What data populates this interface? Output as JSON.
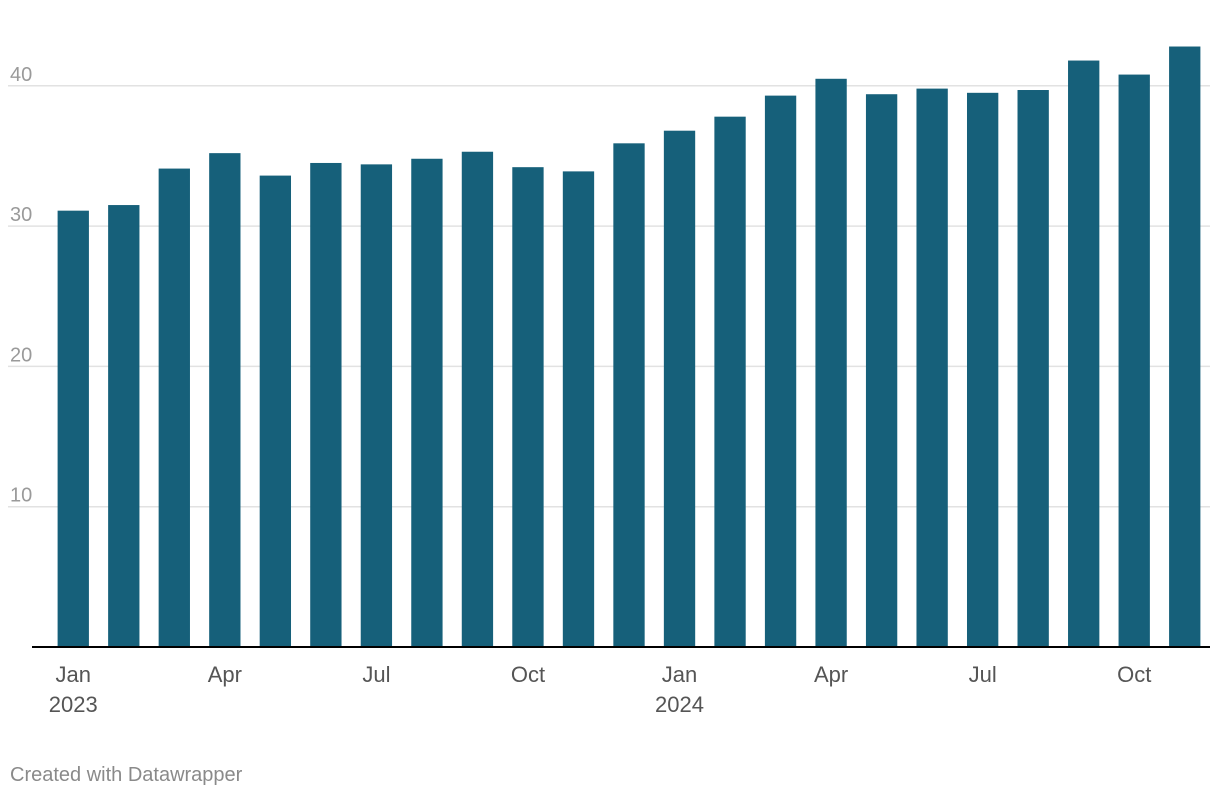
{
  "chart_data": {
    "type": "bar",
    "categories": [
      "2023-01",
      "2023-02",
      "2023-03",
      "2023-04",
      "2023-05",
      "2023-06",
      "2023-07",
      "2023-08",
      "2023-09",
      "2023-10",
      "2023-11",
      "2023-12",
      "2024-01",
      "2024-02",
      "2024-03",
      "2024-04",
      "2024-05",
      "2024-06",
      "2024-07",
      "2024-08",
      "2024-09",
      "2024-10",
      "2024-11"
    ],
    "values": [
      31.1,
      31.5,
      34.1,
      35.2,
      33.6,
      34.5,
      34.4,
      34.8,
      35.3,
      34.2,
      33.9,
      35.9,
      36.8,
      37.8,
      39.3,
      40.5,
      39.4,
      39.8,
      39.5,
      39.7,
      41.8,
      40.8,
      42.8
    ],
    "bar_color": "#16607a",
    "ylim": [
      0,
      43.5
    ],
    "y_ticks": [
      {
        "value": 10,
        "label": "10"
      },
      {
        "value": 20,
        "label": "20"
      },
      {
        "value": 30,
        "label": "30"
      },
      {
        "value": 40,
        "label": "40"
      }
    ],
    "x_ticks": [
      {
        "index": 0,
        "label": "Jan",
        "sublabel": "2023"
      },
      {
        "index": 3,
        "label": "Apr"
      },
      {
        "index": 6,
        "label": "Jul"
      },
      {
        "index": 9,
        "label": "Oct"
      },
      {
        "index": 12,
        "label": "Jan",
        "sublabel": "2024"
      },
      {
        "index": 15,
        "label": "Apr"
      },
      {
        "index": 18,
        "label": "Jul"
      },
      {
        "index": 21,
        "label": "Oct"
      }
    ],
    "grid": true,
    "title": "",
    "xlabel": "",
    "ylabel": ""
  },
  "footer": {
    "credit": "Created with Datawrapper"
  }
}
